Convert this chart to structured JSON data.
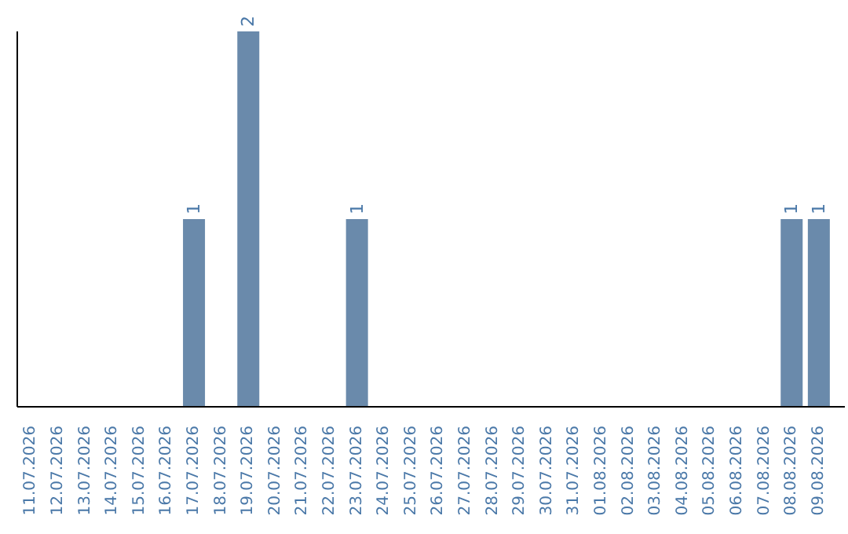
{
  "chart_data": {
    "type": "bar",
    "categories": [
      "11.07.2026",
      "12.07.2026",
      "13.07.2026",
      "14.07.2026",
      "15.07.2026",
      "16.07.2026",
      "17.07.2026",
      "18.07.2026",
      "19.07.2026",
      "20.07.2026",
      "21.07.2026",
      "22.07.2026",
      "23.07.2026",
      "24.07.2026",
      "25.07.2026",
      "26.07.2026",
      "27.07.2026",
      "28.07.2026",
      "29.07.2026",
      "30.07.2026",
      "31.07.2026",
      "01.08.2026",
      "02.08.2026",
      "03.08.2026",
      "04.08.2026",
      "05.08.2026",
      "06.08.2026",
      "07.08.2026",
      "08.08.2026",
      "09.08.2026"
    ],
    "values": [
      null,
      null,
      null,
      null,
      null,
      null,
      1,
      null,
      2,
      null,
      null,
      null,
      1,
      null,
      null,
      null,
      null,
      null,
      null,
      null,
      null,
      null,
      null,
      null,
      null,
      null,
      null,
      null,
      1,
      1
    ],
    "data_labels": true,
    "color": "#6a8aab",
    "tick_labels": "x"
  }
}
